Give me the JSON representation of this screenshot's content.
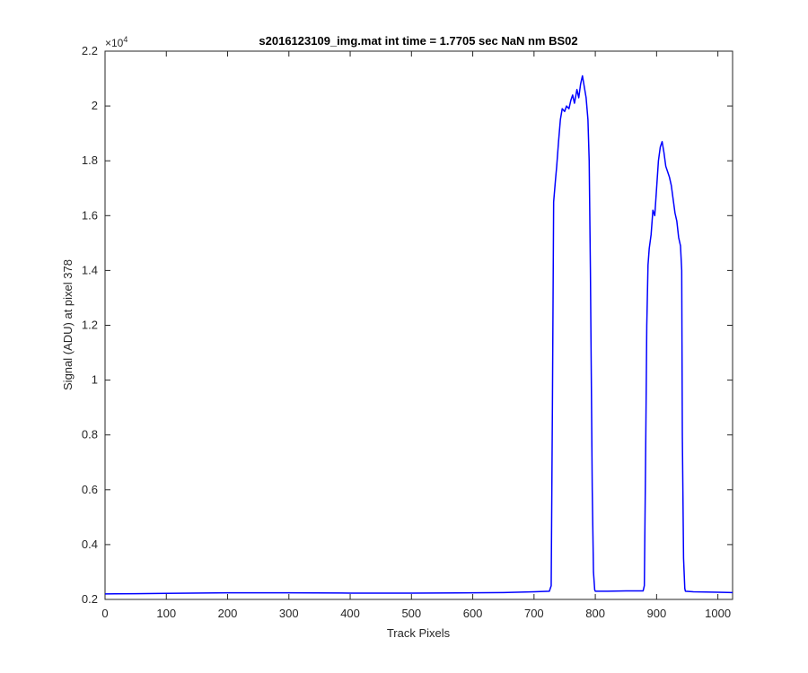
{
  "chart_data": {
    "type": "line",
    "title": "s2016123109_img.mat int time = 1.7705 sec  NaN nm BS02",
    "xlabel": "Track Pixels",
    "ylabel": "Signal (ADU) at pixel 378",
    "xlim": [
      0,
      1024
    ],
    "ylim": [
      2000,
      22000
    ],
    "y_exponent_label": "×10",
    "y_exponent_power": "4",
    "grid": false,
    "legend": "none",
    "x_ticks": [
      0,
      100,
      200,
      300,
      400,
      500,
      600,
      700,
      800,
      900,
      1000
    ],
    "x_tick_labels": [
      "0",
      "100",
      "200",
      "300",
      "400",
      "500",
      "600",
      "700",
      "800",
      "900",
      "1000"
    ],
    "y_ticks": [
      2000,
      4000,
      6000,
      8000,
      10000,
      12000,
      14000,
      16000,
      18000,
      20000,
      22000
    ],
    "y_tick_labels": [
      "0.2",
      "0.4",
      "0.6",
      "0.8",
      "1",
      "1.2",
      "1.4",
      "1.6",
      "1.8",
      "2",
      "2.2"
    ],
    "series": [
      {
        "color": "#0000ff",
        "x": [
          0,
          50,
          100,
          200,
          300,
          400,
          500,
          600,
          650,
          700,
          725,
          728,
          730,
          732,
          735,
          737,
          740,
          743,
          746,
          750,
          753,
          757,
          760,
          763,
          766,
          770,
          773,
          776,
          779,
          782,
          785,
          788,
          790,
          792,
          795,
          797,
          799,
          800,
          820,
          850,
          878,
          880,
          882,
          884,
          886,
          888,
          891,
          894,
          897,
          900,
          903,
          906,
          909,
          912,
          915,
          918,
          921,
          924,
          927,
          930,
          933,
          936,
          939,
          941,
          942,
          944,
          946,
          947,
          960,
          1000,
          1024
        ],
        "y": [
          2200,
          2210,
          2220,
          2240,
          2240,
          2230,
          2230,
          2240,
          2250,
          2280,
          2300,
          2500,
          9000,
          16500,
          17300,
          17800,
          18700,
          19500,
          19900,
          19800,
          20000,
          19900,
          20200,
          20400,
          20100,
          20600,
          20300,
          20800,
          21100,
          20700,
          20300,
          19500,
          18000,
          14000,
          6000,
          3000,
          2350,
          2300,
          2300,
          2310,
          2310,
          2500,
          7000,
          12000,
          14200,
          14800,
          15300,
          16200,
          16000,
          17000,
          18000,
          18500,
          18700,
          18300,
          17800,
          17600,
          17400,
          17100,
          16600,
          16100,
          15800,
          15200,
          14900,
          14000,
          8000,
          3500,
          2400,
          2300,
          2280,
          2260,
          2250
        ]
      }
    ]
  }
}
